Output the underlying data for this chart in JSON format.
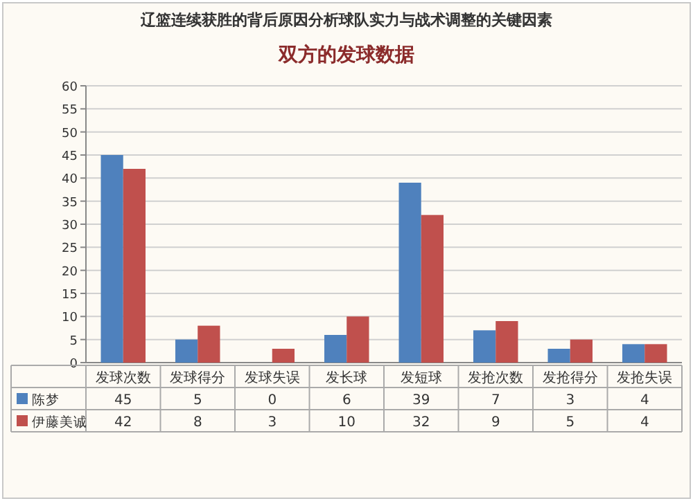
{
  "chart_data": {
    "type": "bar",
    "title": "双方的发球数据",
    "subtitle": "辽篮连续获胜的背后原因分析球队实力与战术调整的关键因素",
    "categories": [
      "发球次数",
      "发球得分",
      "发球失误",
      "发长球",
      "发短球",
      "发抢次数",
      "发抢得分",
      "发抢失误"
    ],
    "series": [
      {
        "name": "陈梦",
        "color": "#4f81bd",
        "values": [
          45,
          5,
          0,
          6,
          39,
          7,
          3,
          4
        ]
      },
      {
        "name": "伊藤美诚",
        "color": "#c0504d",
        "values": [
          42,
          8,
          3,
          10,
          32,
          9,
          5,
          4
        ]
      }
    ],
    "ylim": [
      0,
      60
    ],
    "yticks": [
      0,
      5,
      10,
      15,
      20,
      25,
      30,
      35,
      40,
      45,
      50,
      55,
      60
    ],
    "grid": "y",
    "legend": "bottom",
    "data_labels": true
  }
}
